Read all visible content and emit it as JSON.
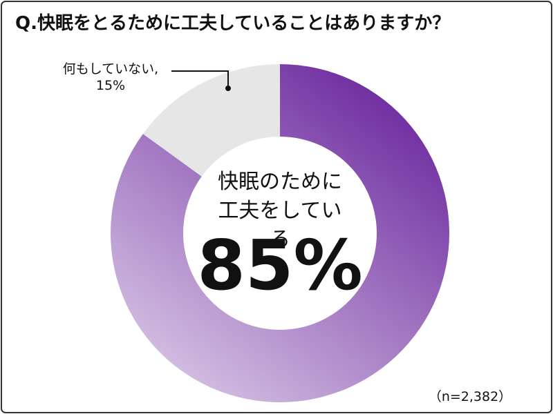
{
  "chart_data": {
    "type": "donut",
    "title": "Q.快眠をとるために工夫していることはありますか？",
    "categories": [
      "快眠のために\n工夫をしている",
      "何もしていない,"
    ],
    "values": [
      85,
      15
    ],
    "value_labels": [
      "85%",
      "15%"
    ],
    "colors": [
      "#6f2da0",
      "#e6e6e6"
    ],
    "note": "（n=2,382）"
  }
}
